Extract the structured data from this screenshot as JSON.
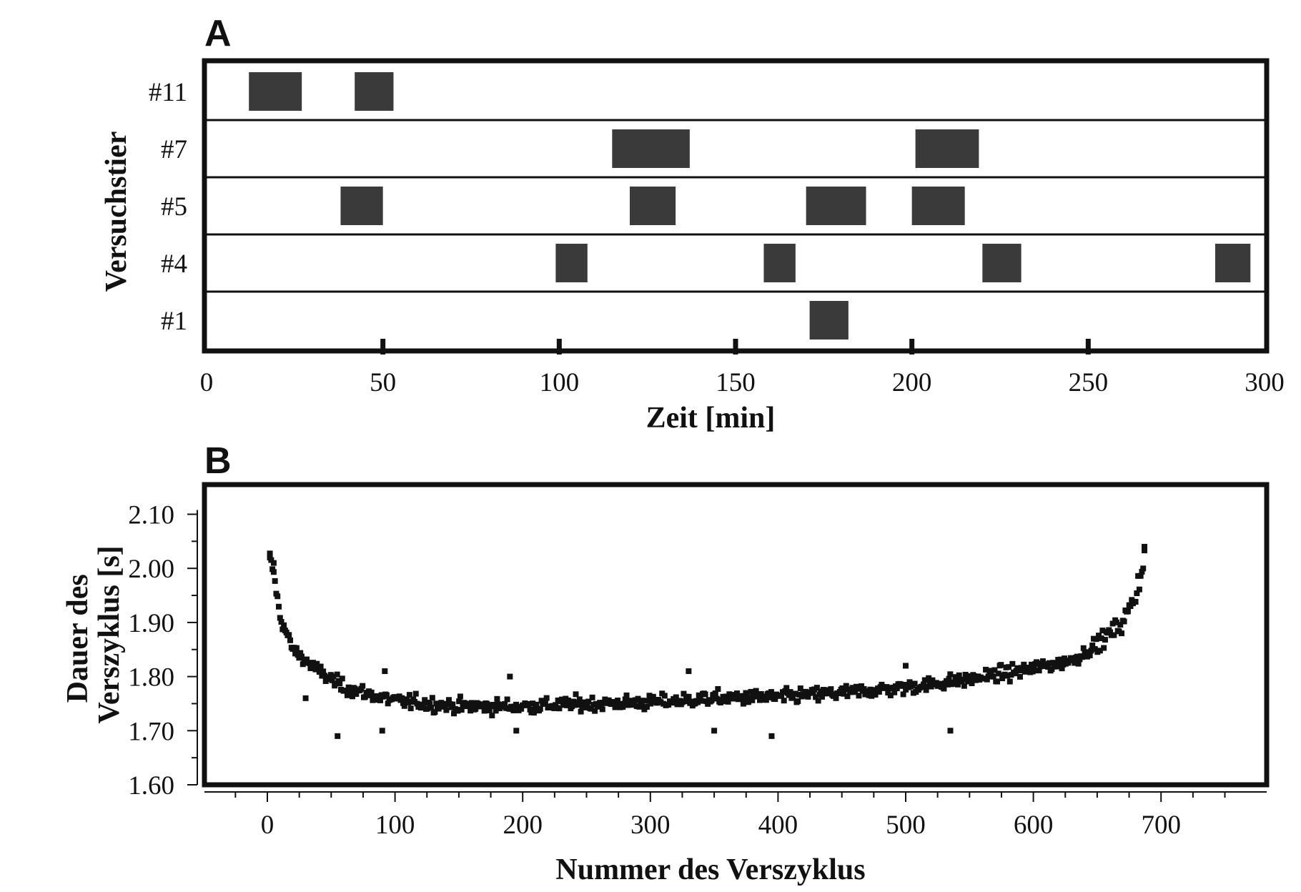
{
  "chart_data": [
    {
      "panel": "A",
      "type": "bar",
      "subtype": "timeline",
      "xlabel": "Zeit [min]",
      "ylabel": "Versuchstier",
      "xlim": [
        0,
        300
      ],
      "xticks": [
        0,
        50,
        100,
        150,
        200,
        250,
        300
      ],
      "rows": [
        "#11",
        "#7",
        "#5",
        "#4",
        "#1"
      ],
      "series": [
        {
          "name": "#11",
          "intervals": [
            [
              12,
              27
            ],
            [
              42,
              53
            ]
          ]
        },
        {
          "name": "#7",
          "intervals": [
            [
              115,
              137
            ],
            [
              201,
              219
            ]
          ]
        },
        {
          "name": "#5",
          "intervals": [
            [
              38,
              50
            ],
            [
              120,
              133
            ],
            [
              170,
              187
            ],
            [
              200,
              215
            ]
          ]
        },
        {
          "name": "#4",
          "intervals": [
            [
              99,
              108
            ],
            [
              158,
              167
            ],
            [
              220,
              231
            ],
            [
              286,
              296
            ]
          ]
        },
        {
          "name": "#1",
          "intervals": [
            [
              171,
              182
            ]
          ]
        }
      ],
      "grid": false,
      "legend": "none"
    },
    {
      "panel": "B",
      "type": "scatter",
      "xlabel": "Nummer des Verszyklus",
      "ylabel": [
        "Dauer des",
        "Verszyklus [s]"
      ],
      "xlim": [
        -50,
        780
      ],
      "ylim": [
        1.6,
        2.15
      ],
      "xticks": [
        0,
        100,
        200,
        300,
        400,
        500,
        600,
        700
      ],
      "yticks": [
        "1.60",
        "1.70",
        "1.80",
        "1.90",
        "2.00",
        "2.10"
      ],
      "curve_estimate": [
        [
          2,
          2.02
        ],
        [
          5,
          1.99
        ],
        [
          10,
          1.91
        ],
        [
          20,
          1.85
        ],
        [
          40,
          1.81
        ],
        [
          60,
          1.78
        ],
        [
          100,
          1.755
        ],
        [
          150,
          1.745
        ],
        [
          200,
          1.745
        ],
        [
          250,
          1.75
        ],
        [
          300,
          1.752
        ],
        [
          350,
          1.76
        ],
        [
          400,
          1.762
        ],
        [
          450,
          1.77
        ],
        [
          500,
          1.78
        ],
        [
          550,
          1.795
        ],
        [
          600,
          1.815
        ],
        [
          630,
          1.83
        ],
        [
          650,
          1.86
        ],
        [
          670,
          1.9
        ],
        [
          680,
          1.95
        ],
        [
          688,
          2.03
        ]
      ],
      "outliers": [
        [
          2,
          2.02
        ],
        [
          5,
          2.01
        ],
        [
          687,
          2.04
        ],
        [
          55,
          1.69
        ],
        [
          90,
          1.7
        ],
        [
          195,
          1.7
        ],
        [
          395,
          1.69
        ],
        [
          535,
          1.7
        ],
        [
          92,
          1.81
        ],
        [
          190,
          1.8
        ],
        [
          330,
          1.81
        ],
        [
          500,
          1.82
        ],
        [
          30,
          1.76
        ],
        [
          350,
          1.7
        ]
      ],
      "point_count": 690,
      "grid": false,
      "legend": "none"
    }
  ]
}
